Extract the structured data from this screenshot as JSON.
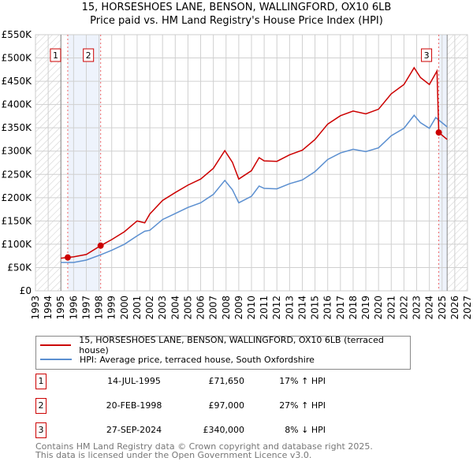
{
  "chart_data": {
    "type": "line",
    "title": "15, HORSESHOES LANE, BENSON, WALLINGFORD, OX10 6LB",
    "subtitle": "Price paid vs. HM Land Registry's House Price Index (HPI)",
    "xlim": [
      1993,
      2027
    ],
    "ylim": [
      0,
      550000
    ],
    "x_ticks": [
      "1993",
      "1994",
      "1995",
      "1996",
      "1997",
      "1998",
      "1999",
      "2000",
      "2001",
      "2002",
      "2003",
      "2004",
      "2005",
      "2006",
      "2007",
      "2008",
      "2009",
      "2010",
      "2011",
      "2012",
      "2013",
      "2014",
      "2015",
      "2016",
      "2017",
      "2018",
      "2019",
      "2020",
      "2021",
      "2022",
      "2023",
      "2024",
      "2025",
      "2026",
      "2027"
    ],
    "y_ticks": [
      {
        "v": 0,
        "l": "£0"
      },
      {
        "v": 50000,
        "l": "£50K"
      },
      {
        "v": 100000,
        "l": "£100K"
      },
      {
        "v": 150000,
        "l": "£150K"
      },
      {
        "v": 200000,
        "l": "£200K"
      },
      {
        "v": 250000,
        "l": "£250K"
      },
      {
        "v": 300000,
        "l": "£300K"
      },
      {
        "v": 350000,
        "l": "£350K"
      },
      {
        "v": 400000,
        "l": "£400K"
      },
      {
        "v": 450000,
        "l": "£450K"
      },
      {
        "v": 500000,
        "l": "£500K"
      },
      {
        "v": 550000,
        "l": "£550K"
      }
    ],
    "grid": true,
    "data_range": [
      1995.0,
      2025.4
    ],
    "series": [
      {
        "name": "15, HORSESHOES LANE, BENSON, WALLINGFORD, OX10 6LB (terraced house)",
        "color": "#cc0000",
        "x": [
          1995.0,
          1995.54,
          1996,
          1997,
          1998.13,
          1999,
          2000,
          2001,
          2001.6,
          2002,
          2003,
          2004,
          2005,
          2006,
          2007,
          2007.9,
          2008.5,
          2009,
          2010,
          2010.6,
          2011,
          2012,
          2013,
          2014,
          2015,
          2016,
          2017,
          2018,
          2019,
          2020,
          2021,
          2022,
          2022.8,
          2023.3,
          2024,
          2024.6,
          2024.74,
          2025.4
        ],
        "y": [
          70000,
          71650,
          73000,
          78000,
          97000,
          110000,
          127000,
          150000,
          146000,
          165000,
          194000,
          211000,
          227000,
          240000,
          263000,
          301000,
          276000,
          240000,
          258000,
          286000,
          279000,
          278000,
          292000,
          302000,
          325000,
          358000,
          376000,
          386000,
          380000,
          390000,
          423000,
          443000,
          479000,
          458000,
          443000,
          472000,
          340000,
          325000
        ]
      },
      {
        "name": "HPI: Average price, terraced house, South Oxfordshire",
        "color": "#5b8fd0",
        "x": [
          1995.0,
          1996,
          1997,
          1998,
          1999,
          2000,
          2001,
          2001.6,
          2002,
          2003,
          2004,
          2005,
          2006,
          2007,
          2007.9,
          2008.5,
          2009,
          2010,
          2010.6,
          2011,
          2012,
          2013,
          2014,
          2015,
          2016,
          2017,
          2018,
          2019,
          2020,
          2021,
          2022,
          2022.8,
          2023.3,
          2024,
          2024.5,
          2025.4
        ],
        "y": [
          61000,
          61000,
          66000,
          76000,
          87000,
          100000,
          118000,
          128000,
          130000,
          153000,
          166000,
          179000,
          189000,
          207000,
          237000,
          217000,
          189000,
          203000,
          225000,
          220000,
          219000,
          230000,
          238000,
          256000,
          282000,
          296000,
          304000,
          299000,
          307000,
          333000,
          349000,
          377000,
          361000,
          349000,
          372000,
          352000
        ]
      }
    ],
    "sales": [
      {
        "label": "1",
        "x": 1995.54,
        "y": 71650
      },
      {
        "label": "2",
        "x": 1998.13,
        "y": 97000
      },
      {
        "label": "3",
        "x": 2024.74,
        "y": 340000
      }
    ]
  },
  "legend": {
    "property": "15, HORSESHOES LANE, BENSON, WALLINGFORD, OX10 6LB (terraced house)",
    "hpi": "HPI: Average price, terraced house, South Oxfordshire"
  },
  "table": [
    {
      "num": "1",
      "date": "14-JUL-1995",
      "price": "£71,650",
      "pct": "17% ↑ HPI"
    },
    {
      "num": "2",
      "date": "20-FEB-1998",
      "price": "£97,000",
      "pct": "27% ↑ HPI"
    },
    {
      "num": "3",
      "date": "27-SEP-2024",
      "price": "£340,000",
      "pct": "8% ↓ HPI"
    }
  ],
  "footer": {
    "line1": "Contains HM Land Registry data © Crown copyright and database right 2025.",
    "line2": "This data is licensed under the Open Government Licence v3.0."
  }
}
